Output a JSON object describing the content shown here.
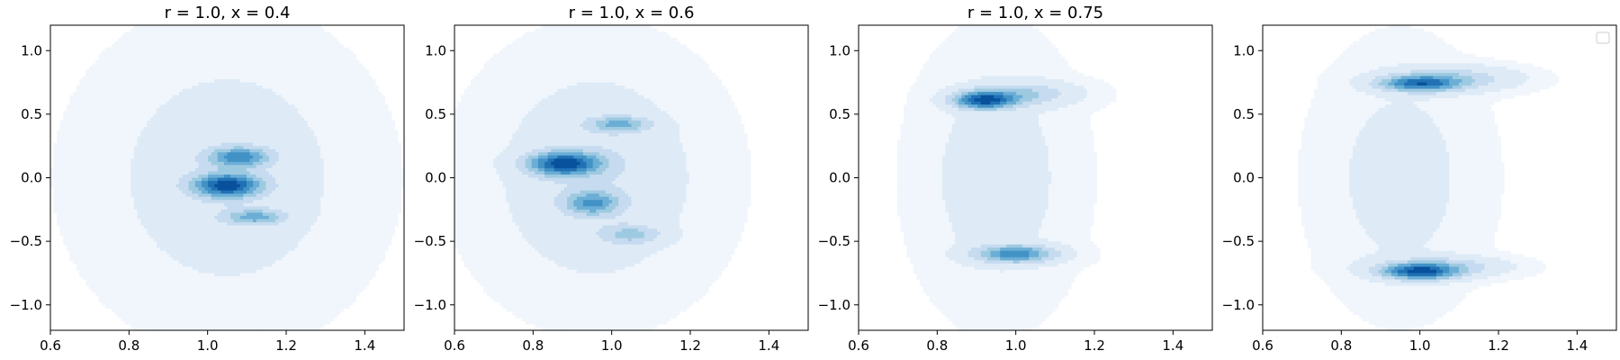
{
  "figure": {
    "background": "#ffffff",
    "colormap": [
      "#f1f6fc",
      "#deebf7",
      "#c6dbef",
      "#9ecae1",
      "#6baed6",
      "#4292c6",
      "#2171b5",
      "#08519c"
    ]
  },
  "chart_data": [
    {
      "type": "contour",
      "title": "r = 1.0, x = 0.4",
      "xlabel": "",
      "ylabel": "",
      "xlim": [
        0.6,
        1.5
      ],
      "ylim": [
        -1.2,
        1.2
      ],
      "xticks": [
        "0.6",
        "0.8",
        "1.0",
        "1.2",
        "1.4"
      ],
      "yticks": [
        "−1.0",
        "−0.5",
        "0.0",
        "0.5",
        "1.0"
      ],
      "legend": false,
      "peaks": [
        {
          "x": 1.05,
          "y": -0.06,
          "sx": 0.055,
          "sy": 0.06,
          "w": 1.0,
          "rho": 0.0
        },
        {
          "x": 1.08,
          "y": 0.16,
          "sx": 0.05,
          "sy": 0.05,
          "w": 0.65,
          "rho": 0.0
        },
        {
          "x": 1.12,
          "y": -0.31,
          "sx": 0.05,
          "sy": 0.04,
          "w": 0.45,
          "rho": 0.0
        },
        {
          "x": 1.05,
          "y": 0.0,
          "sx": 0.16,
          "sy": 0.5,
          "w": 0.12,
          "rho": 0.0
        }
      ],
      "background_level": 0.05
    },
    {
      "type": "contour",
      "title": "r = 1.0, x = 0.6",
      "xlabel": "",
      "ylabel": "",
      "xlim": [
        0.6,
        1.5
      ],
      "ylim": [
        -1.2,
        1.2
      ],
      "xticks": [
        "0.6",
        "0.8",
        "1.0",
        "1.2",
        "1.4"
      ],
      "yticks": [
        "−1.0",
        "−0.5",
        "0.0",
        "0.5",
        "1.0"
      ],
      "legend": false,
      "peaks": [
        {
          "x": 0.88,
          "y": 0.11,
          "sx": 0.06,
          "sy": 0.06,
          "w": 1.0,
          "rho": 0.0
        },
        {
          "x": 0.95,
          "y": -0.2,
          "sx": 0.045,
          "sy": 0.06,
          "w": 0.55,
          "rho": 0.0
        },
        {
          "x": 1.02,
          "y": 0.42,
          "sx": 0.05,
          "sy": 0.04,
          "w": 0.45,
          "rho": 0.0
        },
        {
          "x": 1.05,
          "y": -0.45,
          "sx": 0.05,
          "sy": 0.05,
          "w": 0.3,
          "rho": 0.0
        },
        {
          "x": 0.96,
          "y": 0.0,
          "sx": 0.14,
          "sy": 0.45,
          "w": 0.15,
          "rho": 0.0
        }
      ],
      "background_level": 0.05
    },
    {
      "type": "contour",
      "title": "r = 1.0, x = 0.75",
      "xlabel": "",
      "ylabel": "",
      "xlim": [
        0.6,
        1.5
      ],
      "ylim": [
        -1.2,
        1.2
      ],
      "xticks": [
        "0.6",
        "0.8",
        "1.0",
        "1.2",
        "1.4"
      ],
      "yticks": [
        "−1.0",
        "−0.5",
        "0.0",
        "0.5",
        "1.0"
      ],
      "legend": false,
      "peaks": [
        {
          "x": 0.92,
          "y": 0.61,
          "sx": 0.05,
          "sy": 0.045,
          "w": 1.0,
          "rho": 0.0
        },
        {
          "x": 1.0,
          "y": -0.6,
          "sx": 0.065,
          "sy": 0.045,
          "w": 0.7,
          "rho": 0.0
        },
        {
          "x": 1.02,
          "y": 0.66,
          "sx": 0.08,
          "sy": 0.06,
          "w": 0.3,
          "rho": 0.0
        },
        {
          "x": 0.95,
          "y": 0.0,
          "sx": 0.1,
          "sy": 0.5,
          "w": 0.1,
          "rho": 0.0
        }
      ],
      "background_level": 0.05
    },
    {
      "type": "contour",
      "title": "",
      "xlabel": "",
      "ylabel": "",
      "xlim": [
        0.6,
        1.5
      ],
      "ylim": [
        -1.2,
        1.2
      ],
      "xticks": [
        "0.6",
        "0.8",
        "1.0",
        "1.2",
        "1.4"
      ],
      "yticks": [
        "−1.0",
        "−0.5",
        "0.0",
        "0.5",
        "1.0"
      ],
      "legend": "top-right",
      "peaks": [
        {
          "x": 1.0,
          "y": 0.74,
          "sx": 0.065,
          "sy": 0.04,
          "w": 0.85,
          "rho": 0.0
        },
        {
          "x": 1.0,
          "y": -0.74,
          "sx": 0.06,
          "sy": 0.04,
          "w": 1.0,
          "rho": 0.0
        },
        {
          "x": 1.08,
          "y": 0.78,
          "sx": 0.1,
          "sy": 0.06,
          "w": 0.3,
          "rho": 0.0
        },
        {
          "x": 1.05,
          "y": -0.7,
          "sx": 0.1,
          "sy": 0.05,
          "w": 0.3,
          "rho": 0.0
        },
        {
          "x": 0.95,
          "y": 0.0,
          "sx": 0.12,
          "sy": 0.55,
          "w": 0.08,
          "rho": 0.0
        }
      ],
      "background_level": 0.05
    }
  ]
}
